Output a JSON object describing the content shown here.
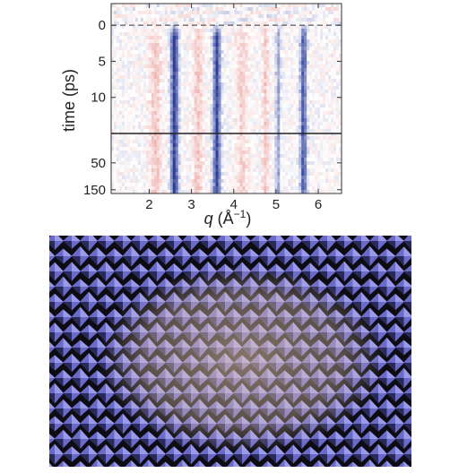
{
  "chart_data": {
    "type": "heatmap",
    "title": "",
    "xlabel": "q (Å⁻¹)",
    "xlabel_parts": {
      "symbol": "q",
      "open": " (Å",
      "exponent": "−1",
      "close": ")"
    },
    "ylabel": "time (ps)",
    "xlim": [
      1.1,
      6.55
    ],
    "x_ticks": [
      2,
      3,
      4,
      5,
      6
    ],
    "y_scale": "split: linear 0–15 ps above break, compressed 15–175 ps below",
    "y_upper_range": [
      -3,
      15
    ],
    "y_lower_range": [
      15,
      175
    ],
    "y_ticks_upper": [
      0,
      5,
      10
    ],
    "y_ticks_lower": [
      50,
      150
    ],
    "y_ticks_lower_labels": [
      "50",
      "150"
    ],
    "y_ticks_upper_labels": [
      "0",
      "5",
      "10"
    ],
    "x_tick_labels": [
      "2",
      "3",
      "4",
      "5",
      "6"
    ],
    "time_zero_line": 0,
    "colormap": {
      "negative": "#2b3d9a",
      "zero": "#ffffff",
      "positive": "#d9534f"
    },
    "features": [
      {
        "q": 2.6,
        "width": 0.09,
        "sign": "negative",
        "strength": 1.0
      },
      {
        "q": 3.6,
        "width": 0.09,
        "sign": "negative",
        "strength": 0.95
      },
      {
        "q": 4.75,
        "width": 0.08,
        "sign": "positive",
        "strength": 0.3
      },
      {
        "q": 5.05,
        "width": 0.06,
        "sign": "negative",
        "strength": 0.45
      },
      {
        "q": 5.65,
        "width": 0.08,
        "sign": "negative",
        "strength": 0.85
      },
      {
        "q": 2.15,
        "width": 0.15,
        "sign": "positive",
        "strength": 0.3
      },
      {
        "q": 3.15,
        "width": 0.12,
        "sign": "positive",
        "strength": 0.3
      },
      {
        "q": 4.2,
        "width": 0.15,
        "sign": "positive",
        "strength": 0.25
      }
    ]
  },
  "render_panel": {
    "tile_color": "#6a6ac8",
    "tile_highlight": "#9a9ae8",
    "tile_shadow": "#2a2a5a",
    "background": "#0c0c12",
    "glow_color": "#e8c8b0"
  }
}
